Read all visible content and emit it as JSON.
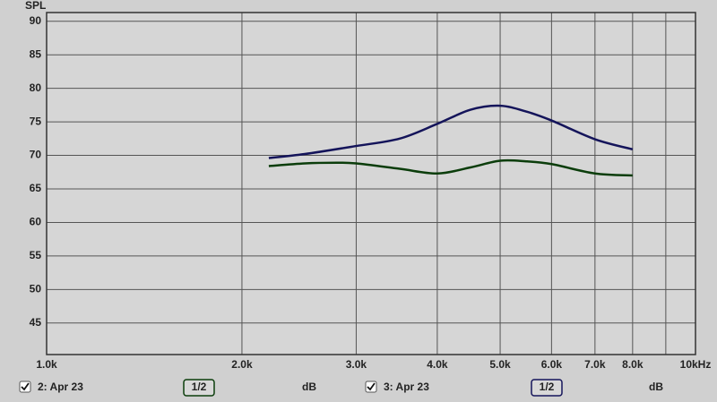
{
  "chart_data": {
    "type": "line",
    "y_label": "SPL",
    "xscale": "log",
    "grid": true,
    "xlim": [
      1000,
      10000
    ],
    "ylim": [
      40.3,
      91.3
    ],
    "xticks": [
      {
        "value": 1000,
        "label": "1.0k"
      },
      {
        "value": 2000,
        "label": "2.0k"
      },
      {
        "value": 3000,
        "label": "3.0k"
      },
      {
        "value": 4000,
        "label": "4.0k"
      },
      {
        "value": 5000,
        "label": "5.0k"
      },
      {
        "value": 6000,
        "label": "6.0k"
      },
      {
        "value": 7000,
        "label": "7.0k"
      },
      {
        "value": 8000,
        "label": "8.0k"
      },
      {
        "value": 9000,
        "label": null
      },
      {
        "value": 10000,
        "label": "10kHz"
      }
    ],
    "yticks": [
      45,
      50,
      55,
      60,
      65,
      70,
      75,
      80,
      85,
      90
    ],
    "series": [
      {
        "name": "2: Apr 23",
        "color": "#0b3d0b",
        "smoothing": "1/2",
        "unit": "dB",
        "x": [
          2200,
          2500,
          2800,
          3000,
          3500,
          4000,
          4500,
          5000,
          5500,
          6000,
          7000,
          8000
        ],
        "values": [
          68.4,
          68.8,
          68.9,
          68.8,
          68.0,
          67.3,
          68.2,
          69.2,
          69.1,
          68.7,
          67.3,
          67.0
        ]
      },
      {
        "name": "3: Apr 23",
        "color": "#14145a",
        "smoothing": "1/2",
        "unit": "dB",
        "x": [
          2200,
          2500,
          3000,
          3500,
          4000,
          4500,
          5000,
          5500,
          6000,
          7000,
          8000
        ],
        "values": [
          69.6,
          70.2,
          71.4,
          72.5,
          74.7,
          76.8,
          77.4,
          76.5,
          75.2,
          72.4,
          70.9
        ]
      }
    ]
  }
}
